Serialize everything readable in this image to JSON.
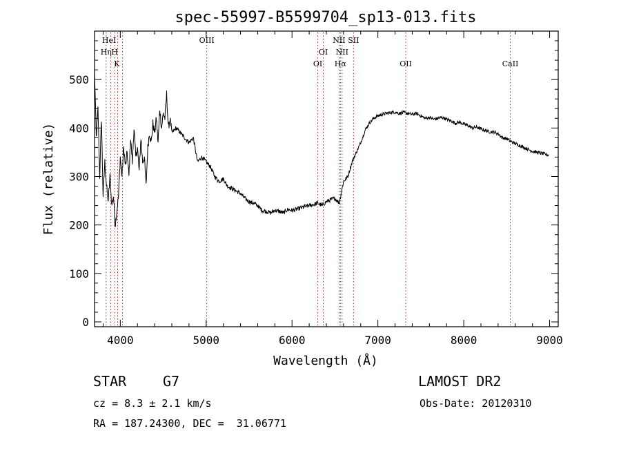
{
  "chart_data": {
    "type": "line",
    "title": "spec-55997-B5599704_sp13-013.fits",
    "xlabel": "Wavelength (Å)",
    "ylabel": "Flux (relative)",
    "xlim": [
      3700,
      9100
    ],
    "ylim": [
      -10,
      600
    ],
    "x_ticks": [
      4000,
      5000,
      6000,
      7000,
      8000,
      9000
    ],
    "y_ticks": [
      0,
      100,
      200,
      300,
      400,
      500
    ],
    "grid": false,
    "series": [
      {
        "x": [
          3700,
          3720,
          3740,
          3760,
          3780,
          3800,
          3820,
          3840,
          3860,
          3880,
          3900,
          3920,
          3940,
          3960,
          3980,
          4000,
          4020,
          4040,
          4060,
          4080,
          4100,
          4120,
          4140,
          4160,
          4180,
          4200,
          4220,
          4240,
          4260,
          4280,
          4300,
          4320,
          4340,
          4360,
          4380,
          4400,
          4420,
          4440,
          4460,
          4480,
          4500,
          4520,
          4540,
          4560,
          4580,
          4600,
          4650,
          4700,
          4750,
          4800,
          4850,
          4900,
          4950,
          5000,
          5050,
          5100,
          5150,
          5200,
          5250,
          5300,
          5350,
          5400,
          5450,
          5500,
          5550,
          5600,
          5650,
          5700,
          5750,
          5800,
          5850,
          5900,
          5950,
          6000,
          6050,
          6100,
          6150,
          6200,
          6250,
          6300,
          6350,
          6400,
          6450,
          6500,
          6550,
          6600,
          6650,
          6700,
          6750,
          6800,
          6850,
          6900,
          6950,
          7000,
          7050,
          7100,
          7150,
          7200,
          7250,
          7300,
          7350,
          7400,
          7450,
          7500,
          7550,
          7600,
          7650,
          7700,
          7750,
          7800,
          7850,
          7900,
          7950,
          8000,
          8050,
          8100,
          8150,
          8200,
          8250,
          8300,
          8350,
          8400,
          8450,
          8500,
          8550,
          8600,
          8650,
          8700,
          8750,
          8800,
          8850,
          8900,
          8950,
          8990
        ],
        "y": [
          520,
          380,
          440,
          300,
          420,
          260,
          330,
          280,
          250,
          300,
          240,
          260,
          200,
          230,
          260,
          340,
          300,
          360,
          320,
          350,
          300,
          380,
          330,
          400,
          340,
          360,
          310,
          380,
          330,
          340,
          280,
          360,
          390,
          370,
          410,
          390,
          420,
          370,
          440,
          400,
          430,
          420,
          470,
          400,
          420,
          390,
          400,
          390,
          380,
          370,
          380,
          330,
          340,
          330,
          320,
          300,
          290,
          295,
          280,
          275,
          270,
          265,
          255,
          248,
          245,
          240,
          230,
          228,
          225,
          230,
          228,
          225,
          232,
          230,
          232,
          235,
          238,
          240,
          242,
          245,
          240,
          248,
          252,
          255,
          245,
          290,
          300,
          330,
          350,
          370,
          395,
          410,
          420,
          425,
          428,
          430,
          432,
          433,
          430,
          432,
          430,
          428,
          430,
          425,
          420,
          422,
          418,
          420,
          422,
          418,
          415,
          410,
          412,
          408,
          405,
          400,
          402,
          398,
          395,
          392,
          392,
          388,
          380,
          378,
          372,
          368,
          364,
          360,
          356,
          352,
          350,
          348,
          346,
          344
        ],
        "color": "#000000"
      }
    ],
    "lines": [
      {
        "x": 3835,
        "label": "",
        "color": "#b02020"
      },
      {
        "x": 3889,
        "label": "",
        "color": "#b02020"
      },
      {
        "x": 3934,
        "label": "",
        "color": "#b02020"
      },
      {
        "x": 3969,
        "label": "",
        "color": "#b02020"
      },
      {
        "x": 4026,
        "label": "",
        "color": "#b02020"
      },
      {
        "x": 5007,
        "label": "OIII",
        "color": "#b02020"
      },
      {
        "x": 6300,
        "label": "OI",
        "color": "#b02020"
      },
      {
        "x": 6364,
        "label": "OI",
        "color": "#b02020"
      },
      {
        "x": 6548,
        "label": "NII",
        "color": "#b02020"
      },
      {
        "x": 6563,
        "label": "Hα",
        "color": "#b02020"
      },
      {
        "x": 6583,
        "label": "NII",
        "color": "#b02020"
      },
      {
        "x": 6716,
        "label": "SII",
        "color": "#b02020"
      },
      {
        "x": 7325,
        "label": "OII",
        "color": "#b02020"
      },
      {
        "x": 8542,
        "label": "CaII",
        "color": "#b02020"
      }
    ],
    "line_labels": [
      {
        "x": 3870,
        "row": 0,
        "text": "HeI"
      },
      {
        "x": 3835,
        "row": 1,
        "text": "Hη"
      },
      {
        "x": 3934,
        "row": 1,
        "text": "H"
      },
      {
        "x": 3960,
        "row": 2,
        "text": "K"
      },
      {
        "x": 5007,
        "row": 0,
        "text": "OIII"
      },
      {
        "x": 6548,
        "row": 0,
        "text": "NII"
      },
      {
        "x": 6716,
        "row": 0,
        "text": "SII"
      },
      {
        "x": 6364,
        "row": 1,
        "text": "OI"
      },
      {
        "x": 6583,
        "row": 1,
        "text": "NII"
      },
      {
        "x": 6300,
        "row": 2,
        "text": "OI"
      },
      {
        "x": 6563,
        "row": 2,
        "text": "Hα"
      },
      {
        "x": 7325,
        "row": 2,
        "text": "OII"
      },
      {
        "x": 8542,
        "row": 2,
        "text": "CaII"
      }
    ]
  },
  "info": {
    "object_class": "STAR",
    "subclass": "G7",
    "survey": "LAMOST DR2",
    "cz": "cz = 8.3 ± 2.1 km/s",
    "obs_date": "Obs-Date: 20120310",
    "coords": "RA = 187.24300, DEC =  31.06771"
  }
}
